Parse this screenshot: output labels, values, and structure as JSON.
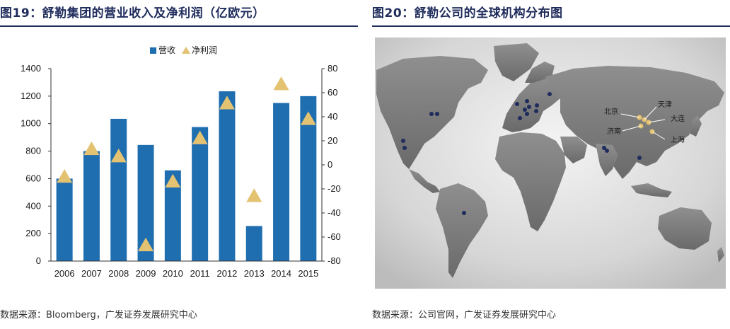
{
  "left": {
    "title": "图19：舒勒集团的营业收入及净利润（亿欧元）",
    "source": "数据来源：Bloomberg，广发证券发展研究中心"
  },
  "right": {
    "title": "图20：舒勒公司的全球机构分布图",
    "source": "数据来源：公司官网，广发证券发展研究中心",
    "map_labels": [
      "北京",
      "天津",
      "大连",
      "济南",
      "上海"
    ]
  },
  "chart_data": {
    "type": "bar",
    "categories": [
      "2006",
      "2007",
      "2008",
      "2009",
      "2010",
      "2011",
      "2012",
      "2013",
      "2014",
      "2015"
    ],
    "series": [
      {
        "name": "营收",
        "type": "bar",
        "axis": "left",
        "values": [
          600,
          800,
          1035,
          845,
          660,
          975,
          1235,
          255,
          1150,
          1200
        ],
        "color": "#1f6eb0"
      },
      {
        "name": "净利润",
        "type": "marker",
        "marker": "triangle",
        "axis": "right",
        "values": [
          -10,
          13,
          7,
          -67,
          -14,
          22,
          51,
          -26,
          67,
          38
        ],
        "color": "#e3c272"
      }
    ],
    "y_left": {
      "min": 0,
      "max": 1400,
      "ticks": [
        0,
        200,
        400,
        600,
        800,
        1000,
        1200,
        1400
      ]
    },
    "y_right": {
      "min": -80,
      "max": 80,
      "ticks": [
        -80,
        -60,
        -40,
        -20,
        0,
        20,
        40,
        60,
        80
      ]
    },
    "legend_position": "top-center",
    "grid": false
  }
}
